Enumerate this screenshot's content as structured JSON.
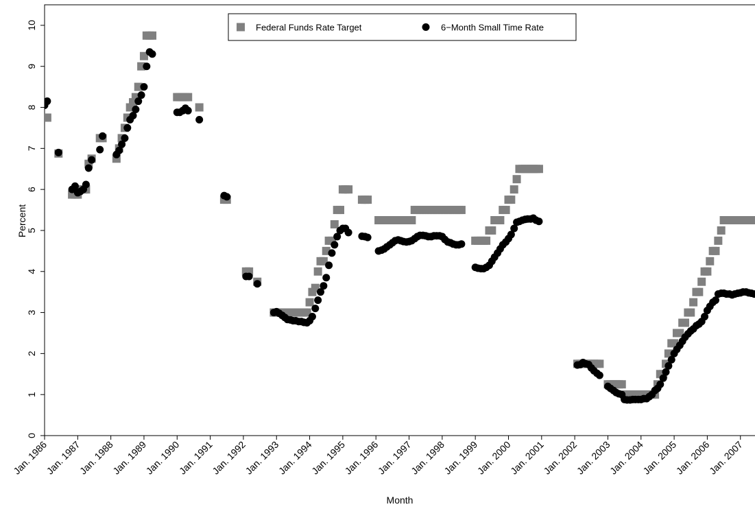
{
  "chart_data": {
    "type": "scatter",
    "x_label": "Month",
    "y_label": "Percent",
    "xlim": [
      1986,
      2007.44
    ],
    "ylim": [
      0,
      10.5
    ],
    "xticks": [
      {
        "value": 1986,
        "label": "Jan. 1986"
      },
      {
        "value": 1987,
        "label": "Jan. 1987"
      },
      {
        "value": 1988,
        "label": "Jan. 1988"
      },
      {
        "value": 1989,
        "label": "Jan. 1989"
      },
      {
        "value": 1990,
        "label": "Jan. 1990"
      },
      {
        "value": 1991,
        "label": "Jan. 1991"
      },
      {
        "value": 1992,
        "label": "Jan. 1992"
      },
      {
        "value": 1993,
        "label": "Jan. 1993"
      },
      {
        "value": 1994,
        "label": "Jan. 1994"
      },
      {
        "value": 1995,
        "label": "Jan. 1995"
      },
      {
        "value": 1996,
        "label": "Jan. 1996"
      },
      {
        "value": 1997,
        "label": "Jan. 1997"
      },
      {
        "value": 1998,
        "label": "Jan. 1998"
      },
      {
        "value": 1999,
        "label": "Jan. 1999"
      },
      {
        "value": 2000,
        "label": "Jan. 2000"
      },
      {
        "value": 2001,
        "label": "Jan. 2001"
      },
      {
        "value": 2002,
        "label": "Jan. 2002"
      },
      {
        "value": 2003,
        "label": "Jan. 2003"
      },
      {
        "value": 2004,
        "label": "Jan. 2004"
      },
      {
        "value": 2005,
        "label": "Jan. 2005"
      },
      {
        "value": 2006,
        "label": "Jan. 2006"
      },
      {
        "value": 2007,
        "label": "Jan. 2007"
      }
    ],
    "yticks": [
      0,
      1,
      2,
      3,
      4,
      5,
      6,
      7,
      8,
      9,
      10
    ],
    "legend": "top",
    "x": [
      1986.0,
      1986.08,
      1986.42,
      1986.83,
      1986.92,
      1987.0,
      1987.08,
      1987.17,
      1987.25,
      1987.33,
      1987.42,
      1987.67,
      1987.75,
      1988.17,
      1988.25,
      1988.33,
      1988.42,
      1988.5,
      1988.58,
      1988.67,
      1988.75,
      1988.83,
      1988.92,
      1989.0,
      1989.08,
      1989.17,
      1989.25,
      1990.0,
      1990.08,
      1990.17,
      1990.25,
      1990.33,
      1990.67,
      1991.42,
      1991.5,
      1992.08,
      1992.17,
      1992.42,
      1992.92,
      1993.0,
      1993.08,
      1993.17,
      1993.25,
      1993.33,
      1993.42,
      1993.5,
      1993.58,
      1993.67,
      1993.75,
      1993.83,
      1993.92,
      1994.0,
      1994.08,
      1994.17,
      1994.25,
      1994.33,
      1994.42,
      1994.5,
      1994.58,
      1994.67,
      1994.75,
      1994.83,
      1994.92,
      1995.0,
      1995.08,
      1995.17,
      1995.58,
      1995.67,
      1995.75,
      1996.08,
      1996.17,
      1996.25,
      1996.33,
      1996.42,
      1996.5,
      1996.58,
      1996.67,
      1996.75,
      1996.83,
      1996.92,
      1997.0,
      1997.08,
      1997.17,
      1997.25,
      1997.33,
      1997.42,
      1997.5,
      1997.58,
      1997.67,
      1997.75,
      1997.83,
      1997.92,
      1998.0,
      1998.08,
      1998.17,
      1998.25,
      1998.33,
      1998.42,
      1998.5,
      1998.58,
      1999.0,
      1999.08,
      1999.17,
      1999.25,
      1999.33,
      1999.42,
      1999.5,
      1999.58,
      1999.67,
      1999.75,
      1999.83,
      1999.92,
      2000.0,
      2000.08,
      2000.17,
      2000.25,
      2000.33,
      2000.42,
      2000.5,
      2000.58,
      2000.67,
      2000.75,
      2000.83,
      2000.92,
      2002.08,
      2002.17,
      2002.25,
      2002.33,
      2002.42,
      2002.5,
      2002.58,
      2002.67,
      2002.75,
      2003.0,
      2003.08,
      2003.17,
      2003.25,
      2003.33,
      2003.42,
      2003.5,
      2003.58,
      2003.67,
      2003.75,
      2003.83,
      2003.92,
      2004.0,
      2004.08,
      2004.17,
      2004.25,
      2004.33,
      2004.42,
      2004.5,
      2004.58,
      2004.67,
      2004.75,
      2004.83,
      2004.92,
      2005.0,
      2005.08,
      2005.17,
      2005.25,
      2005.33,
      2005.42,
      2005.5,
      2005.58,
      2005.67,
      2005.75,
      2005.83,
      2005.92,
      2006.0,
      2006.08,
      2006.17,
      2006.25,
      2006.33,
      2006.42,
      2006.5,
      2006.58,
      2006.67,
      2006.75,
      2006.83,
      2006.92,
      2007.0,
      2007.08,
      2007.17,
      2007.25,
      2007.33,
      2007.42
    ],
    "series": [
      {
        "name": "Federal Funds Rate Target",
        "color": "#808080",
        "marker": "square",
        "values": [
          7.75,
          7.75,
          6.875,
          5.875,
          5.875,
          5.875,
          6.0,
          6.0,
          6.0,
          6.625,
          6.75,
          7.25,
          7.25,
          6.75,
          7.0,
          7.25,
          7.5,
          7.75,
          8.0,
          8.125,
          8.25,
          8.5,
          9.0,
          9.25,
          9.75,
          9.75,
          9.75,
          8.25,
          8.25,
          8.25,
          8.25,
          8.25,
          8.0,
          5.75,
          5.75,
          4.0,
          4.0,
          3.75,
          3.0,
          3.0,
          3.0,
          3.0,
          3.0,
          3.0,
          3.0,
          3.0,
          3.0,
          3.0,
          3.0,
          3.0,
          3.0,
          3.25,
          3.5,
          3.6,
          4.0,
          4.25,
          4.25,
          4.5,
          4.75,
          4.75,
          5.15,
          5.5,
          5.5,
          6.0,
          6.0,
          6.0,
          5.75,
          5.75,
          5.75,
          5.25,
          5.25,
          5.25,
          5.25,
          5.25,
          5.25,
          5.25,
          5.25,
          5.25,
          5.25,
          5.25,
          5.25,
          5.25,
          5.5,
          5.5,
          5.5,
          5.5,
          5.5,
          5.5,
          5.5,
          5.5,
          5.5,
          5.5,
          5.5,
          5.5,
          5.5,
          5.5,
          5.5,
          5.5,
          5.5,
          5.5,
          4.75,
          4.75,
          4.75,
          4.75,
          4.75,
          5.0,
          5.0,
          5.25,
          5.25,
          5.25,
          5.5,
          5.5,
          5.75,
          5.75,
          6.0,
          6.25,
          6.5,
          6.5,
          6.5,
          6.5,
          6.5,
          6.5,
          6.5,
          6.5,
          1.75,
          1.75,
          1.75,
          1.75,
          1.75,
          1.75,
          1.75,
          1.75,
          1.75,
          1.25,
          1.25,
          1.25,
          1.25,
          1.25,
          1.25,
          1.0,
          1.0,
          1.0,
          1.0,
          1.0,
          1.0,
          1.0,
          1.0,
          1.0,
          1.0,
          1.0,
          1.0,
          1.25,
          1.5,
          1.5,
          1.75,
          2.0,
          2.25,
          2.25,
          2.5,
          2.5,
          2.75,
          2.75,
          3.0,
          3.0,
          3.25,
          3.5,
          3.5,
          3.75,
          4.0,
          4.0,
          4.25,
          4.5,
          4.5,
          4.75,
          5.0,
          5.25,
          5.25,
          5.25,
          5.25,
          5.25,
          5.25,
          5.25,
          5.25,
          5.25,
          5.25,
          5.25,
          5.25
        ]
      },
      {
        "name": "6−Month Small Time Rate",
        "color": "#000000",
        "marker": "circle",
        "values": [
          8.05,
          8.15,
          6.9,
          6.0,
          6.08,
          5.92,
          5.95,
          6.0,
          6.12,
          6.52,
          6.72,
          6.97,
          7.3,
          6.85,
          6.95,
          7.1,
          7.25,
          7.5,
          7.7,
          7.8,
          7.95,
          8.15,
          8.3,
          8.5,
          9.0,
          9.35,
          9.3,
          7.88,
          7.88,
          7.92,
          7.98,
          7.92,
          7.7,
          5.85,
          5.82,
          3.88,
          3.88,
          3.7,
          3.0,
          3.02,
          2.98,
          2.93,
          2.88,
          2.83,
          2.82,
          2.8,
          2.8,
          2.78,
          2.78,
          2.76,
          2.75,
          2.8,
          2.9,
          3.1,
          3.3,
          3.5,
          3.65,
          3.85,
          4.15,
          4.45,
          4.65,
          4.85,
          5.0,
          5.05,
          5.05,
          4.95,
          4.86,
          4.85,
          4.83,
          4.5,
          4.52,
          4.55,
          4.6,
          4.65,
          4.7,
          4.75,
          4.77,
          4.75,
          4.73,
          4.72,
          4.73,
          4.75,
          4.8,
          4.85,
          4.88,
          4.88,
          4.87,
          4.85,
          4.85,
          4.87,
          4.87,
          4.87,
          4.85,
          4.78,
          4.72,
          4.7,
          4.67,
          4.65,
          4.65,
          4.67,
          4.1,
          4.08,
          4.07,
          4.07,
          4.1,
          4.15,
          4.25,
          4.35,
          4.45,
          4.55,
          4.65,
          4.72,
          4.8,
          4.9,
          5.05,
          5.2,
          5.22,
          5.25,
          5.27,
          5.28,
          5.28,
          5.3,
          5.25,
          5.22,
          1.72,
          1.73,
          1.78,
          1.75,
          1.73,
          1.65,
          1.58,
          1.52,
          1.47,
          1.2,
          1.15,
          1.1,
          1.05,
          1.02,
          1.0,
          0.88,
          0.87,
          0.87,
          0.88,
          0.88,
          0.88,
          0.88,
          0.9,
          0.9,
          0.95,
          1.0,
          1.1,
          1.15,
          1.25,
          1.4,
          1.55,
          1.7,
          1.85,
          2.0,
          2.1,
          2.2,
          2.3,
          2.4,
          2.48,
          2.55,
          2.6,
          2.68,
          2.72,
          2.78,
          2.9,
          3.05,
          3.15,
          3.25,
          3.3,
          3.45,
          3.47,
          3.47,
          3.45,
          3.45,
          3.43,
          3.45,
          3.47,
          3.48,
          3.5,
          3.5,
          3.48,
          3.47,
          3.45
        ]
      }
    ]
  }
}
